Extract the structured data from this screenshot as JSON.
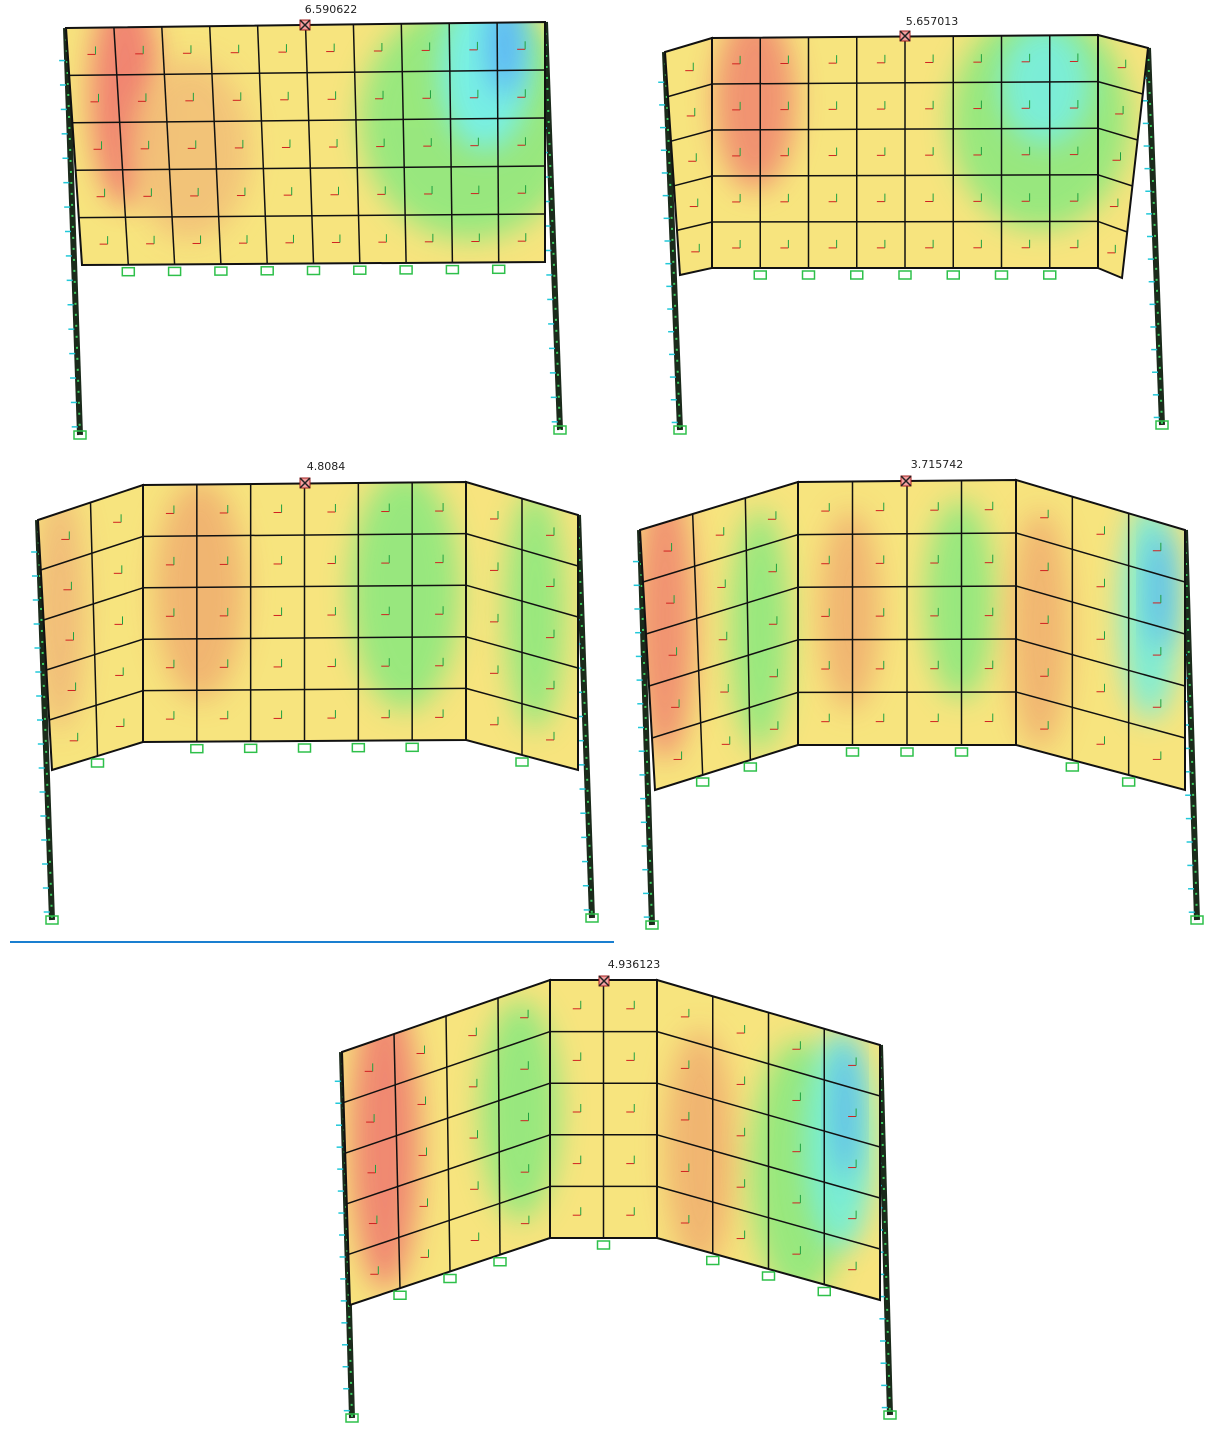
{
  "panels": [
    {
      "label": "6.590622"
    },
    {
      "label": "5.657013"
    },
    {
      "label": "4.8084"
    },
    {
      "label": "3.715742"
    },
    {
      "label": "4.936123"
    }
  ]
}
